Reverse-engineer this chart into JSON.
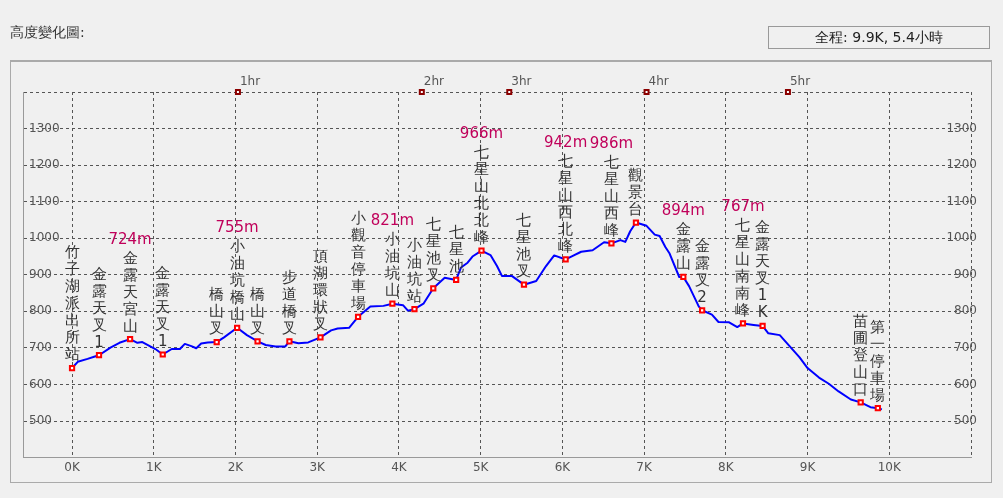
{
  "chart_data": {
    "type": "line",
    "title": "高度變化圖:",
    "subtitle": "全程: 9.9K, 5.4小時",
    "xlim": [
      -0.6,
      11
    ],
    "xticks": [
      {
        "value": 0,
        "label": "0K"
      },
      {
        "value": 1,
        "label": "1K"
      },
      {
        "value": 2,
        "label": "2K"
      },
      {
        "value": 3,
        "label": "3K"
      },
      {
        "value": 4,
        "label": "4K"
      },
      {
        "value": 5,
        "label": "5K"
      },
      {
        "value": 6,
        "label": "6K"
      },
      {
        "value": 7,
        "label": "7K"
      },
      {
        "value": 8,
        "label": "8K"
      },
      {
        "value": 9,
        "label": "9K"
      },
      {
        "value": 10,
        "label": "10K"
      },
      {
        "value": 11,
        "label": null
      }
    ],
    "ylim": [
      400,
      1400
    ],
    "yticks": [
      {
        "value": 400,
        "label": null
      },
      500,
      600,
      700,
      800,
      900,
      1000,
      1100,
      1200,
      1300,
      {
        "value": 1400,
        "label": null
      }
    ],
    "y2lim": [
      400,
      1400
    ],
    "y2ticks": [
      500,
      600,
      700,
      800,
      900,
      1000,
      1100,
      1200,
      1300
    ],
    "grid": true,
    "legend": false,
    "series": [
      {
        "color": "#0000ff",
        "marker": "none",
        "x": [
          0,
          0.07,
          0.19,
          0.27,
          0.33,
          0.47,
          0.58,
          0.71,
          0.8,
          0.86,
          1.02,
          1.11,
          1.22,
          1.32,
          1.38,
          1.46,
          1.52,
          1.58,
          1.66,
          1.77,
          1.86,
          2.02,
          2.14,
          2.27,
          2.37,
          2.49,
          2.61,
          2.66,
          2.77,
          2.89,
          3.04,
          3.17,
          3.25,
          3.39,
          3.5,
          3.65,
          3.81,
          3.92,
          4.05,
          4.11,
          4.19,
          4.3,
          4.42,
          4.56,
          4.7,
          4.76,
          4.84,
          4.9,
          5.01,
          5.12,
          5.2,
          5.26,
          5.38,
          5.53,
          5.68,
          5.8,
          5.9,
          6.04,
          6.23,
          6.37,
          6.51,
          6.6,
          6.71,
          6.77,
          6.83,
          6.9,
          7.03,
          7.13,
          7.19,
          7.26,
          7.31,
          7.43,
          7.48,
          7.55,
          7.67,
          7.71,
          7.83,
          7.91,
          8.04,
          8.14,
          8.21,
          8.34,
          8.45,
          8.52,
          8.66,
          8.78,
          8.9,
          9,
          9.14,
          9.26,
          9.38,
          9.53,
          9.65,
          9.77,
          9.86,
          9.91
        ],
        "values": [
          645,
          662,
          670,
          676,
          680,
          701,
          714,
          724,
          714,
          716,
          697,
          682,
          697,
          697,
          711,
          705,
          699,
          712,
          715,
          716,
          729,
          755,
          735,
          718,
          708,
          704,
          704,
          718,
          713,
          715,
          729,
          748,
          753,
          755,
          785,
          813,
          815,
          821,
          817,
          802,
          806,
          821,
          863,
          892,
          886,
          920,
          933,
          950,
          966,
          954,
          924,
          897,
          897,
          873,
          883,
          924,
          953,
          942,
          963,
          967,
          989,
          986,
          995,
          990,
          1019,
          1043,
          1034,
          1010,
          1006,
          976,
          959,
          894,
          894,
          869,
          813,
          803,
          791,
          771,
          770,
          757,
          767,
          763,
          760,
          740,
          735,
          705,
          675,
          645,
          619,
          602,
          581,
          559,
          551,
          538,
          535,
          532
        ]
      },
      {
        "type": "scatter",
        "color": "#ff0000",
        "marker": "square",
        "x": [
          0,
          0.33,
          0.71,
          1.11,
          1.77,
          2.02,
          2.27,
          2.66,
          3.04,
          3.5,
          3.92,
          4.19,
          4.42,
          4.7,
          5.01,
          5.53,
          6.04,
          6.6,
          6.9,
          7.48,
          7.71,
          8.21,
          8.45,
          9.65,
          9.86
        ],
        "values": [
          645,
          680,
          724,
          682,
          716,
          755,
          718,
          718,
          729,
          785,
          821,
          806,
          863,
          886,
          966,
          873,
          942,
          986,
          1043,
          894,
          803,
          767,
          760,
          551,
          535
        ]
      }
    ],
    "annotations": [
      {
        "text": "1hr",
        "x": 2.03,
        "y": 1400
      },
      {
        "text": "2hr",
        "x": 4.28,
        "y": 1400
      },
      {
        "text": "3hr",
        "x": 5.35,
        "y": 1400
      },
      {
        "text": "4hr",
        "x": 7.03,
        "y": 1400
      },
      {
        "text": "5hr",
        "x": 8.76,
        "y": 1400
      },
      {
        "text": "竹子湖派出所站",
        "x": 0,
        "y": 645
      },
      {
        "text": "金露天叉1",
        "x": 0.33,
        "y": 680
      },
      {
        "text": "金露天宮山",
        "x": 0.71,
        "y": 724
      },
      "724m",
      {
        "text": "金露天叉1",
        "x": 1.11,
        "y": 682
      },
      {
        "text": "橋山叉",
        "x": 1.77,
        "y": 716
      },
      {
        "text": "小油坑橋山",
        "x": 2.02,
        "y": 755
      },
      "755m",
      {
        "text": "橋山叉",
        "x": 2.27,
        "y": 718
      },
      {
        "text": "步道橋叉",
        "x": 2.66,
        "y": 718
      },
      {
        "text": "頂湖環狀叉",
        "x": 3.04,
        "y": 729
      },
      {
        "text": "小觀音停車場",
        "x": 3.5,
        "y": 785
      },
      {
        "text": "小油坑山",
        "x": 3.92,
        "y": 821
      },
      "821m",
      {
        "text": "小油坑站",
        "x": 4.19,
        "y": 806
      },
      {
        "text": "七星池叉",
        "x": 4.42,
        "y": 863
      },
      {
        "text": "七星池",
        "x": 4.7,
        "y": 886
      },
      {
        "text": "七星山北北峰",
        "x": 5.01,
        "y": 966
      },
      "966m",
      {
        "text": "七星池叉",
        "x": 5.53,
        "y": 873
      },
      {
        "text": "七星山西北峰",
        "x": 6.04,
        "y": 942
      },
      "942m",
      {
        "text": "七星山西峰",
        "x": 6.6,
        "y": 986
      },
      "986m",
      {
        "text": "觀景台",
        "x": 6.9,
        "y": 1043
      },
      {
        "text": "金露山",
        "x": 7.48,
        "y": 894
      },
      "894m",
      {
        "text": "金露叉2",
        "x": 7.71,
        "y": 803
      },
      {
        "text": "七星山南南峰",
        "x": 8.21,
        "y": 767
      },
      "767m",
      {
        "text": "金露天叉1K",
        "x": 8.45,
        "y": 760
      },
      {
        "text": "苗圃登山口",
        "x": 9.65,
        "y": 551
      },
      {
        "text": "第一停車場",
        "x": 9.86,
        "y": 535
      }
    ]
  }
}
